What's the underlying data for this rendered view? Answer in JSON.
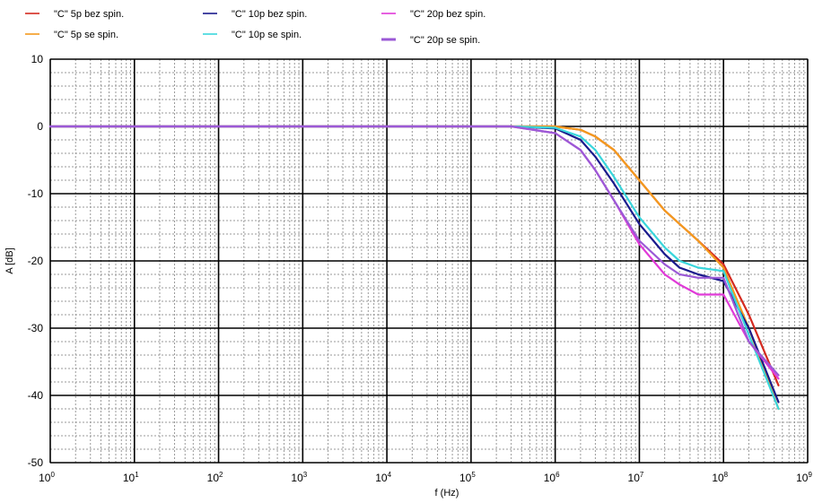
{
  "chart_data": {
    "type": "line",
    "xlabel": "f (Hz)",
    "ylabel": "A [dB]",
    "x_scale": "log",
    "xlim": [
      1,
      1000000000
    ],
    "ylim": [
      -50,
      10
    ],
    "x_ticks": [
      {
        "base": "10",
        "exp": "0"
      },
      {
        "base": "10",
        "exp": "1"
      },
      {
        "base": "10",
        "exp": "2"
      },
      {
        "base": "10",
        "exp": "3"
      },
      {
        "base": "10",
        "exp": "4"
      },
      {
        "base": "10",
        "exp": "5"
      },
      {
        "base": "10",
        "exp": "6"
      },
      {
        "base": "10",
        "exp": "7"
      },
      {
        "base": "10",
        "exp": "8"
      },
      {
        "base": "10",
        "exp": "9"
      }
    ],
    "y_ticks": [
      "10",
      "0",
      "-10",
      "-20",
      "-30",
      "-40",
      "-50"
    ],
    "grid": true,
    "legend_position": "top",
    "series": [
      {
        "name": "\"C\" 5p bez spin.",
        "color": "#d42a20",
        "x": [
          1,
          1000,
          100000,
          300000,
          1000000,
          2000000,
          3000000,
          5000000,
          10000000,
          20000000,
          50000000,
          100000000,
          200000000,
          450000000
        ],
        "y": [
          0,
          0,
          0,
          0,
          0,
          -0.5,
          -1.5,
          -3.5,
          -8,
          -12.5,
          -17,
          -20.5,
          -28,
          -38.5
        ]
      },
      {
        "name": "\"C\" 5p se spin.",
        "color": "#f39a1e",
        "x": [
          1,
          1000,
          100000,
          300000,
          1000000,
          2000000,
          3000000,
          5000000,
          10000000,
          20000000,
          50000000,
          100000000,
          200000000,
          450000000
        ],
        "y": [
          0,
          0,
          0,
          0,
          0,
          -0.5,
          -1.5,
          -3.5,
          -8,
          -12.5,
          -17,
          -21,
          -30,
          -42
        ]
      },
      {
        "name": "\"C\" 10p bez spin.",
        "color": "#1a1a8c",
        "x": [
          1,
          1000,
          100000,
          300000,
          1000000,
          2000000,
          3000000,
          5000000,
          10000000,
          20000000,
          30000000,
          50000000,
          100000000,
          200000000,
          450000000
        ],
        "y": [
          0,
          0,
          0,
          0,
          -0.3,
          -2,
          -4.5,
          -8.5,
          -14.5,
          -19,
          -21,
          -22,
          -23,
          -30,
          -41
        ]
      },
      {
        "name": "\"C\" 10p se spin.",
        "color": "#39d6dc",
        "x": [
          1,
          1000,
          100000,
          300000,
          1000000,
          2000000,
          3000000,
          5000000,
          10000000,
          20000000,
          30000000,
          50000000,
          100000000,
          200000000,
          450000000
        ],
        "y": [
          0,
          0,
          0,
          0,
          -0.2,
          -1.5,
          -3.5,
          -7.5,
          -13.5,
          -18,
          -20,
          -21,
          -21.5,
          -31,
          -42
        ]
      },
      {
        "name": "\"C\" 20p bez spin.",
        "color": "#e03ad8",
        "x": [
          1,
          1000,
          100000,
          300000,
          1000000,
          2000000,
          3000000,
          5000000,
          10000000,
          20000000,
          30000000,
          50000000,
          100000000,
          200000000,
          450000000
        ],
        "y": [
          0,
          0,
          0,
          0,
          -1,
          -3.5,
          -6.5,
          -11,
          -17.5,
          -22,
          -23.5,
          -25,
          -25,
          -32,
          -37.5
        ]
      },
      {
        "name": "\"C\" 20p se spin.",
        "color": "#9b59d6",
        "x": [
          1,
          1000,
          100000,
          300000,
          1000000,
          2000000,
          3000000,
          5000000,
          10000000,
          20000000,
          30000000,
          50000000,
          100000000,
          200000000,
          450000000
        ],
        "y": [
          0,
          0,
          0,
          0,
          -1,
          -3.5,
          -6.5,
          -11,
          -17,
          -20.5,
          -22,
          -22.5,
          -22.5,
          -32,
          -37
        ]
      }
    ]
  }
}
